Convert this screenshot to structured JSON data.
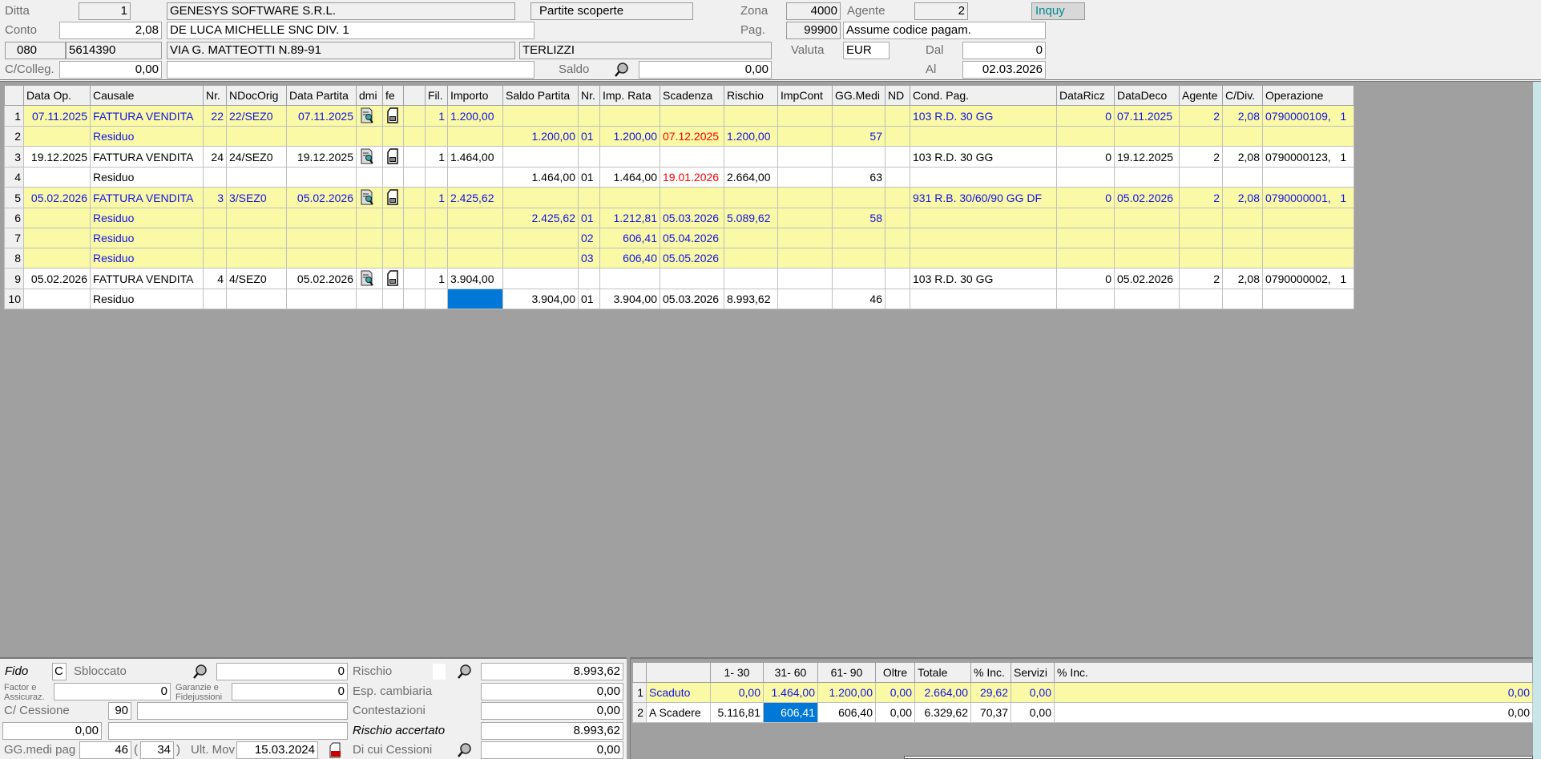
{
  "header": {
    "ditta_label": "Ditta",
    "ditta_value": "1",
    "company": "GENESYS SOFTWARE S.R.L.",
    "view_title": "Partite scoperte",
    "zona_label": "Zona",
    "zona_value": "4000",
    "agente_label": "Agente",
    "agente_value": "2",
    "inquy_button": "Inquy",
    "conto_label": "Conto",
    "conto_value": "2,08",
    "customer": "DE LUCA MICHELLE SNC DIV. 1",
    "pag_label": "Pag.",
    "pag_value": "99900",
    "pag_desc": "Assume codice pagam.",
    "prefix": "080",
    "phone": "5614390",
    "address": "VIA G. MATTEOTTI N.89-91",
    "city": "TERLIZZI",
    "valuta_label": "Valuta",
    "valuta_value": "EUR",
    "dal_label": "Dal",
    "dal_value": "0",
    "ccolleg_label": "C/Colleg.",
    "ccolleg_value": "0,00",
    "ccolleg_desc": "",
    "saldo_label": "Saldo",
    "saldo_value": "0,00",
    "al_label": "Al",
    "al_value": "02.03.2026"
  },
  "colors": {
    "yellow_row": "#f9f9a6",
    "blue_text": "#1414e6",
    "overdue_red": "#ff0000",
    "selection": "#0078d7",
    "background": "#a0a0a0"
  },
  "main_table": {
    "columns": [
      "Data Op.",
      "Causale",
      "Nr.",
      "NDocOrig",
      "Data Partita",
      "dmi",
      "fe",
      "",
      "Fil.",
      "Importo",
      "Saldo Partita",
      "Nr.",
      "Imp. Rata",
      "Scadenza",
      "Rischio",
      "ImpCont",
      "GG.Medi",
      "ND",
      "Cond. Pag.",
      "DataRicz",
      "DataDeco",
      "Agente",
      "C/Div.",
      "Operazione"
    ],
    "rows": [
      {
        "n": "1",
        "style": "y",
        "cells": [
          "07.11.2025",
          "FATTURA VENDITA",
          "22",
          "22/SEZ0",
          "07.11.2025",
          "doc-search-icon",
          "einvoice-icon",
          "",
          "1",
          "1.200,00",
          "",
          "",
          "",
          "",
          "",
          "",
          "",
          "",
          "103 R.D. 30 GG",
          "0",
          "07.11.2025",
          "2",
          "2,08",
          "0790000109,   1"
        ]
      },
      {
        "n": "2",
        "style": "y",
        "cells": [
          "",
          "Residuo",
          "",
          "",
          "",
          "",
          "",
          "",
          "",
          "",
          "1.200,00",
          "01",
          "1.200,00",
          "07.12.2025",
          "1.200,00",
          "",
          "57",
          "",
          "",
          "",
          "",
          "",
          "",
          ""
        ],
        "red": [
          13
        ]
      },
      {
        "n": "3",
        "style": "w",
        "cells": [
          "19.12.2025",
          "FATTURA VENDITA",
          "24",
          "24/SEZ0",
          "19.12.2025",
          "doc-search-icon",
          "einvoice-icon",
          "",
          "1",
          "1.464,00",
          "",
          "",
          "",
          "",
          "",
          "",
          "",
          "",
          "103 R.D. 30 GG",
          "0",
          "19.12.2025",
          "2",
          "2,08",
          "0790000123,   1"
        ]
      },
      {
        "n": "4",
        "style": "w",
        "cells": [
          "",
          "Residuo",
          "",
          "",
          "",
          "",
          "",
          "",
          "",
          "",
          "1.464,00",
          "01",
          "1.464,00",
          "19.01.2026",
          "2.664,00",
          "",
          "63",
          "",
          "",
          "",
          "",
          "",
          "",
          ""
        ],
        "red": [
          13
        ]
      },
      {
        "n": "5",
        "style": "y",
        "cells": [
          "05.02.2026",
          "FATTURA VENDITA",
          "3",
          "3/SEZ0",
          "05.02.2026",
          "doc-search-icon",
          "einvoice-icon",
          "",
          "1",
          "2.425,62",
          "",
          "",
          "",
          "",
          "",
          "",
          "",
          "",
          "931 R.B. 30/60/90 GG DF",
          "0",
          "05.02.2026",
          "2",
          "2,08",
          "0790000001,   1"
        ]
      },
      {
        "n": "6",
        "style": "y",
        "cells": [
          "",
          "Residuo",
          "",
          "",
          "",
          "",
          "",
          "",
          "",
          "",
          "2.425,62",
          "01",
          "1.212,81",
          "05.03.2026",
          "5.089,62",
          "",
          "58",
          "",
          "",
          "",
          "",
          "",
          "",
          ""
        ]
      },
      {
        "n": "7",
        "style": "y",
        "cells": [
          "",
          "Residuo",
          "",
          "",
          "",
          "",
          "",
          "",
          "",
          "",
          "",
          "02",
          "606,41",
          "05.04.2026",
          "",
          "",
          "",
          "",
          "",
          "",
          "",
          "",
          "",
          ""
        ]
      },
      {
        "n": "8",
        "style": "y",
        "cells": [
          "",
          "Residuo",
          "",
          "",
          "",
          "",
          "",
          "",
          "",
          "",
          "",
          "03",
          "606,40",
          "05.05.2026",
          "",
          "",
          "",
          "",
          "",
          "",
          "",
          "",
          "",
          ""
        ]
      },
      {
        "n": "9",
        "style": "w",
        "cells": [
          "05.02.2026",
          "FATTURA VENDITA",
          "4",
          "4/SEZ0",
          "05.02.2026",
          "doc-search-icon",
          "einvoice-icon",
          "",
          "1",
          "3.904,00",
          "",
          "",
          "",
          "",
          "",
          "",
          "",
          "",
          "103 R.D. 30 GG",
          "0",
          "05.02.2026",
          "2",
          "2,08",
          "0790000002,   1"
        ]
      },
      {
        "n": "10",
        "style": "w",
        "cells": [
          "",
          "Residuo",
          "",
          "",
          "",
          "",
          "",
          "",
          "",
          "",
          "3.904,00",
          "01",
          "3.904,00",
          "05.03.2026",
          "8.993,62",
          "",
          "46",
          "",
          "",
          "",
          "",
          "",
          "",
          ""
        ],
        "sel": [
          9
        ]
      }
    ]
  },
  "fido": {
    "fido_label": "Fido",
    "fido_code": "C",
    "fido_status": "Sbloccato",
    "fido_value": "0",
    "rischio_label": "Rischio",
    "rischio_value": "8.993,62",
    "factor_label_1": "Factor e",
    "factor_label_2": "Assicuraz.",
    "factor_value": "0",
    "garanzie_label_1": "Garanzie e",
    "garanzie_label_2": "Fidejussioni",
    "garanzie_value": "0",
    "esp_label": "Esp. cambiaria",
    "esp_value": "0,00",
    "cessione_label": "C/ Cessione",
    "cessione_code": "90",
    "cessione_desc": "",
    "contest_label": "Contestazioni",
    "contest_value": "0,00",
    "extra_value": "0,00",
    "extra_desc": "",
    "rischio_acc_label": "Rischio accertato",
    "rischio_acc_value": "8.993,62",
    "ggmedi_label": "GG.medi pag",
    "ggmedi_value": "46",
    "paren_open": "(",
    "ggmedi2_value": "34",
    "paren_close": ")",
    "ultmov_label": "Ult. Mov",
    "ultmov_value": "15.03.2024",
    "cessioni_label": "Di cui Cessioni",
    "cessioni_value": "0,00"
  },
  "aging_table": {
    "columns": [
      "",
      "1- 30",
      "31- 60",
      "61- 90",
      "Oltre",
      "Totale",
      "% Inc.",
      "Servizi",
      "% Inc."
    ],
    "rows": [
      {
        "n": "1",
        "style": "y",
        "cells": [
          "Scaduto",
          "0,00",
          "1.464,00",
          "1.200,00",
          "0,00",
          "2.664,00",
          "29,62",
          "0,00",
          "0,00"
        ]
      },
      {
        "n": "2",
        "style": "w",
        "cells": [
          "A Scadere",
          "5.116,81",
          "606,41",
          "606,40",
          "0,00",
          "6.329,62",
          "70,37",
          "0,00",
          "0,00"
        ],
        "sel": [
          2
        ]
      }
    ]
  }
}
